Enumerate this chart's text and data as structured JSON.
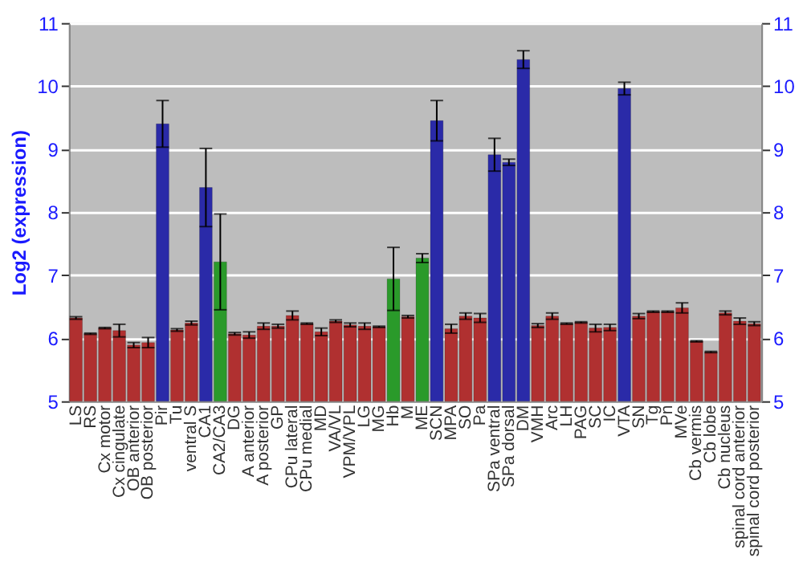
{
  "chart_data": {
    "type": "bar",
    "ylabel": "Log2 (expression)",
    "categories": [
      "LS",
      "RS",
      "Cx motor",
      "Cx cingulate",
      "OB anterior",
      "OB posterior",
      "Pir",
      "Tu",
      "ventral S",
      "CA1",
      "CA2/CA3",
      "DG",
      "A anterior",
      "A posterior",
      "GP",
      "CPu lateral",
      "CPu medial",
      "MD",
      "VA/VL",
      "VPM/VPL",
      "LG",
      "MG",
      "Hb",
      "M",
      "ME",
      "SCN",
      "MPA",
      "SO",
      "Pa",
      "SPa ventral",
      "SPa dorsal",
      "DM",
      "VMH",
      "Arc",
      "LH",
      "PAG",
      "SC",
      "IC",
      "VTA",
      "SN",
      "Tg",
      "Pn",
      "MVe",
      "Cb vermis",
      "Cb lobe",
      "Cb nucleus",
      "spinal cord anterior",
      "spinal cord posterior"
    ],
    "values": [
      6.32,
      6.07,
      6.16,
      6.12,
      5.89,
      5.93,
      9.4,
      6.13,
      6.24,
      8.39,
      7.21,
      6.07,
      6.05,
      6.19,
      6.19,
      6.36,
      6.23,
      6.1,
      6.27,
      6.21,
      6.19,
      6.18,
      6.94,
      6.34,
      7.27,
      9.45,
      6.15,
      6.35,
      6.32,
      8.91,
      8.79,
      10.42,
      6.2,
      6.35,
      6.23,
      6.25,
      6.16,
      6.17,
      9.96,
      6.35,
      6.42,
      6.42,
      6.48,
      5.95,
      5.78,
      6.4,
      6.27,
      6.23
    ],
    "errors": [
      0.02,
      0.01,
      0.01,
      0.1,
      0.04,
      0.08,
      0.37,
      0.02,
      0.03,
      0.62,
      0.76,
      0.02,
      0.05,
      0.05,
      0.03,
      0.07,
      0.01,
      0.06,
      0.02,
      0.03,
      0.05,
      0.01,
      0.5,
      0.02,
      0.07,
      0.32,
      0.07,
      0.05,
      0.07,
      0.26,
      0.05,
      0.14,
      0.03,
      0.05,
      0.01,
      0.01,
      0.06,
      0.05,
      0.1,
      0.04,
      0.01,
      0.01,
      0.08,
      0.01,
      0.01,
      0.03,
      0.05,
      0.03
    ],
    "colors": [
      "#b03030",
      "#b03030",
      "#b03030",
      "#b03030",
      "#b03030",
      "#b03030",
      "#2a2aa8",
      "#b03030",
      "#b03030",
      "#2a2aa8",
      "#2a9a2a",
      "#b03030",
      "#b03030",
      "#b03030",
      "#b03030",
      "#b03030",
      "#b03030",
      "#b03030",
      "#b03030",
      "#b03030",
      "#b03030",
      "#b03030",
      "#2a9a2a",
      "#b03030",
      "#2a9a2a",
      "#2a2aa8",
      "#b03030",
      "#b03030",
      "#b03030",
      "#2a2aa8",
      "#2a2aa8",
      "#2a2aa8",
      "#b03030",
      "#b03030",
      "#b03030",
      "#b03030",
      "#b03030",
      "#b03030",
      "#2a2aa8",
      "#b03030",
      "#b03030",
      "#b03030",
      "#b03030",
      "#b03030",
      "#b03030",
      "#b03030",
      "#b03030",
      "#b03030"
    ],
    "ylim": [
      5,
      11
    ],
    "yticks": [
      5,
      6,
      7,
      8,
      9,
      10,
      11
    ],
    "y2lim": [
      5,
      11
    ],
    "y2ticks": [
      5,
      6,
      7,
      8,
      9,
      10,
      11
    ],
    "grid": "y"
  }
}
